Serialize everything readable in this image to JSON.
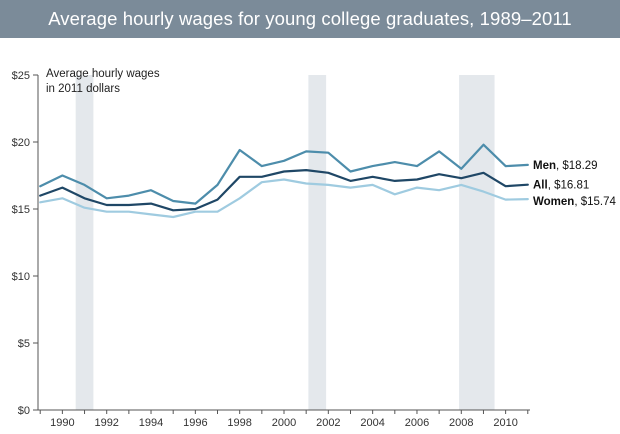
{
  "chart_data": {
    "type": "line",
    "title": "Average hourly wages for young college graduates, 1989–2011",
    "annotation": [
      "Average hourly wages",
      "in 2011 dollars"
    ],
    "x": [
      1989,
      1990,
      1991,
      1992,
      1993,
      1994,
      1995,
      1996,
      1997,
      1998,
      1999,
      2000,
      2001,
      2002,
      2003,
      2004,
      2005,
      2006,
      2007,
      2008,
      2009,
      2010,
      2011
    ],
    "x_ticks": [
      "1990",
      "1992",
      "1994",
      "1996",
      "1998",
      "2000",
      "2002",
      "2004",
      "2006",
      "2008",
      "2010"
    ],
    "y_ticks": [
      "$0",
      "$5",
      "$10",
      "$15",
      "$20",
      "$25"
    ],
    "ylim": [
      0,
      25
    ],
    "xlim": [
      1988.9,
      2011.1
    ],
    "grid": false,
    "recession_shading": [
      [
        1990.6,
        1991.4
      ],
      [
        2001.1,
        2001.9
      ],
      [
        2007.9,
        2009.5
      ]
    ],
    "series": [
      {
        "name": "Men",
        "end_value": "$18.29",
        "color": "#4d8dab",
        "values": [
          16.7,
          17.5,
          16.8,
          15.8,
          16.0,
          16.4,
          15.6,
          15.4,
          16.8,
          19.4,
          18.2,
          18.6,
          19.3,
          19.2,
          17.8,
          18.2,
          18.5,
          18.2,
          19.3,
          18.0,
          19.8,
          18.2,
          18.29
        ]
      },
      {
        "name": "All",
        "end_value": "$16.81",
        "color": "#1f4766",
        "values": [
          16.0,
          16.6,
          15.8,
          15.3,
          15.3,
          15.4,
          14.9,
          15.0,
          15.7,
          17.4,
          17.4,
          17.8,
          17.9,
          17.7,
          17.1,
          17.4,
          17.1,
          17.2,
          17.6,
          17.3,
          17.7,
          16.7,
          16.81
        ]
      },
      {
        "name": "Women",
        "end_value": "$15.74",
        "color": "#9fcbe0",
        "values": [
          15.5,
          15.8,
          15.1,
          14.8,
          14.8,
          14.6,
          14.4,
          14.8,
          14.8,
          15.8,
          17.0,
          17.2,
          16.9,
          16.8,
          16.6,
          16.8,
          16.1,
          16.6,
          16.4,
          16.8,
          16.3,
          15.7,
          15.74
        ]
      }
    ]
  }
}
